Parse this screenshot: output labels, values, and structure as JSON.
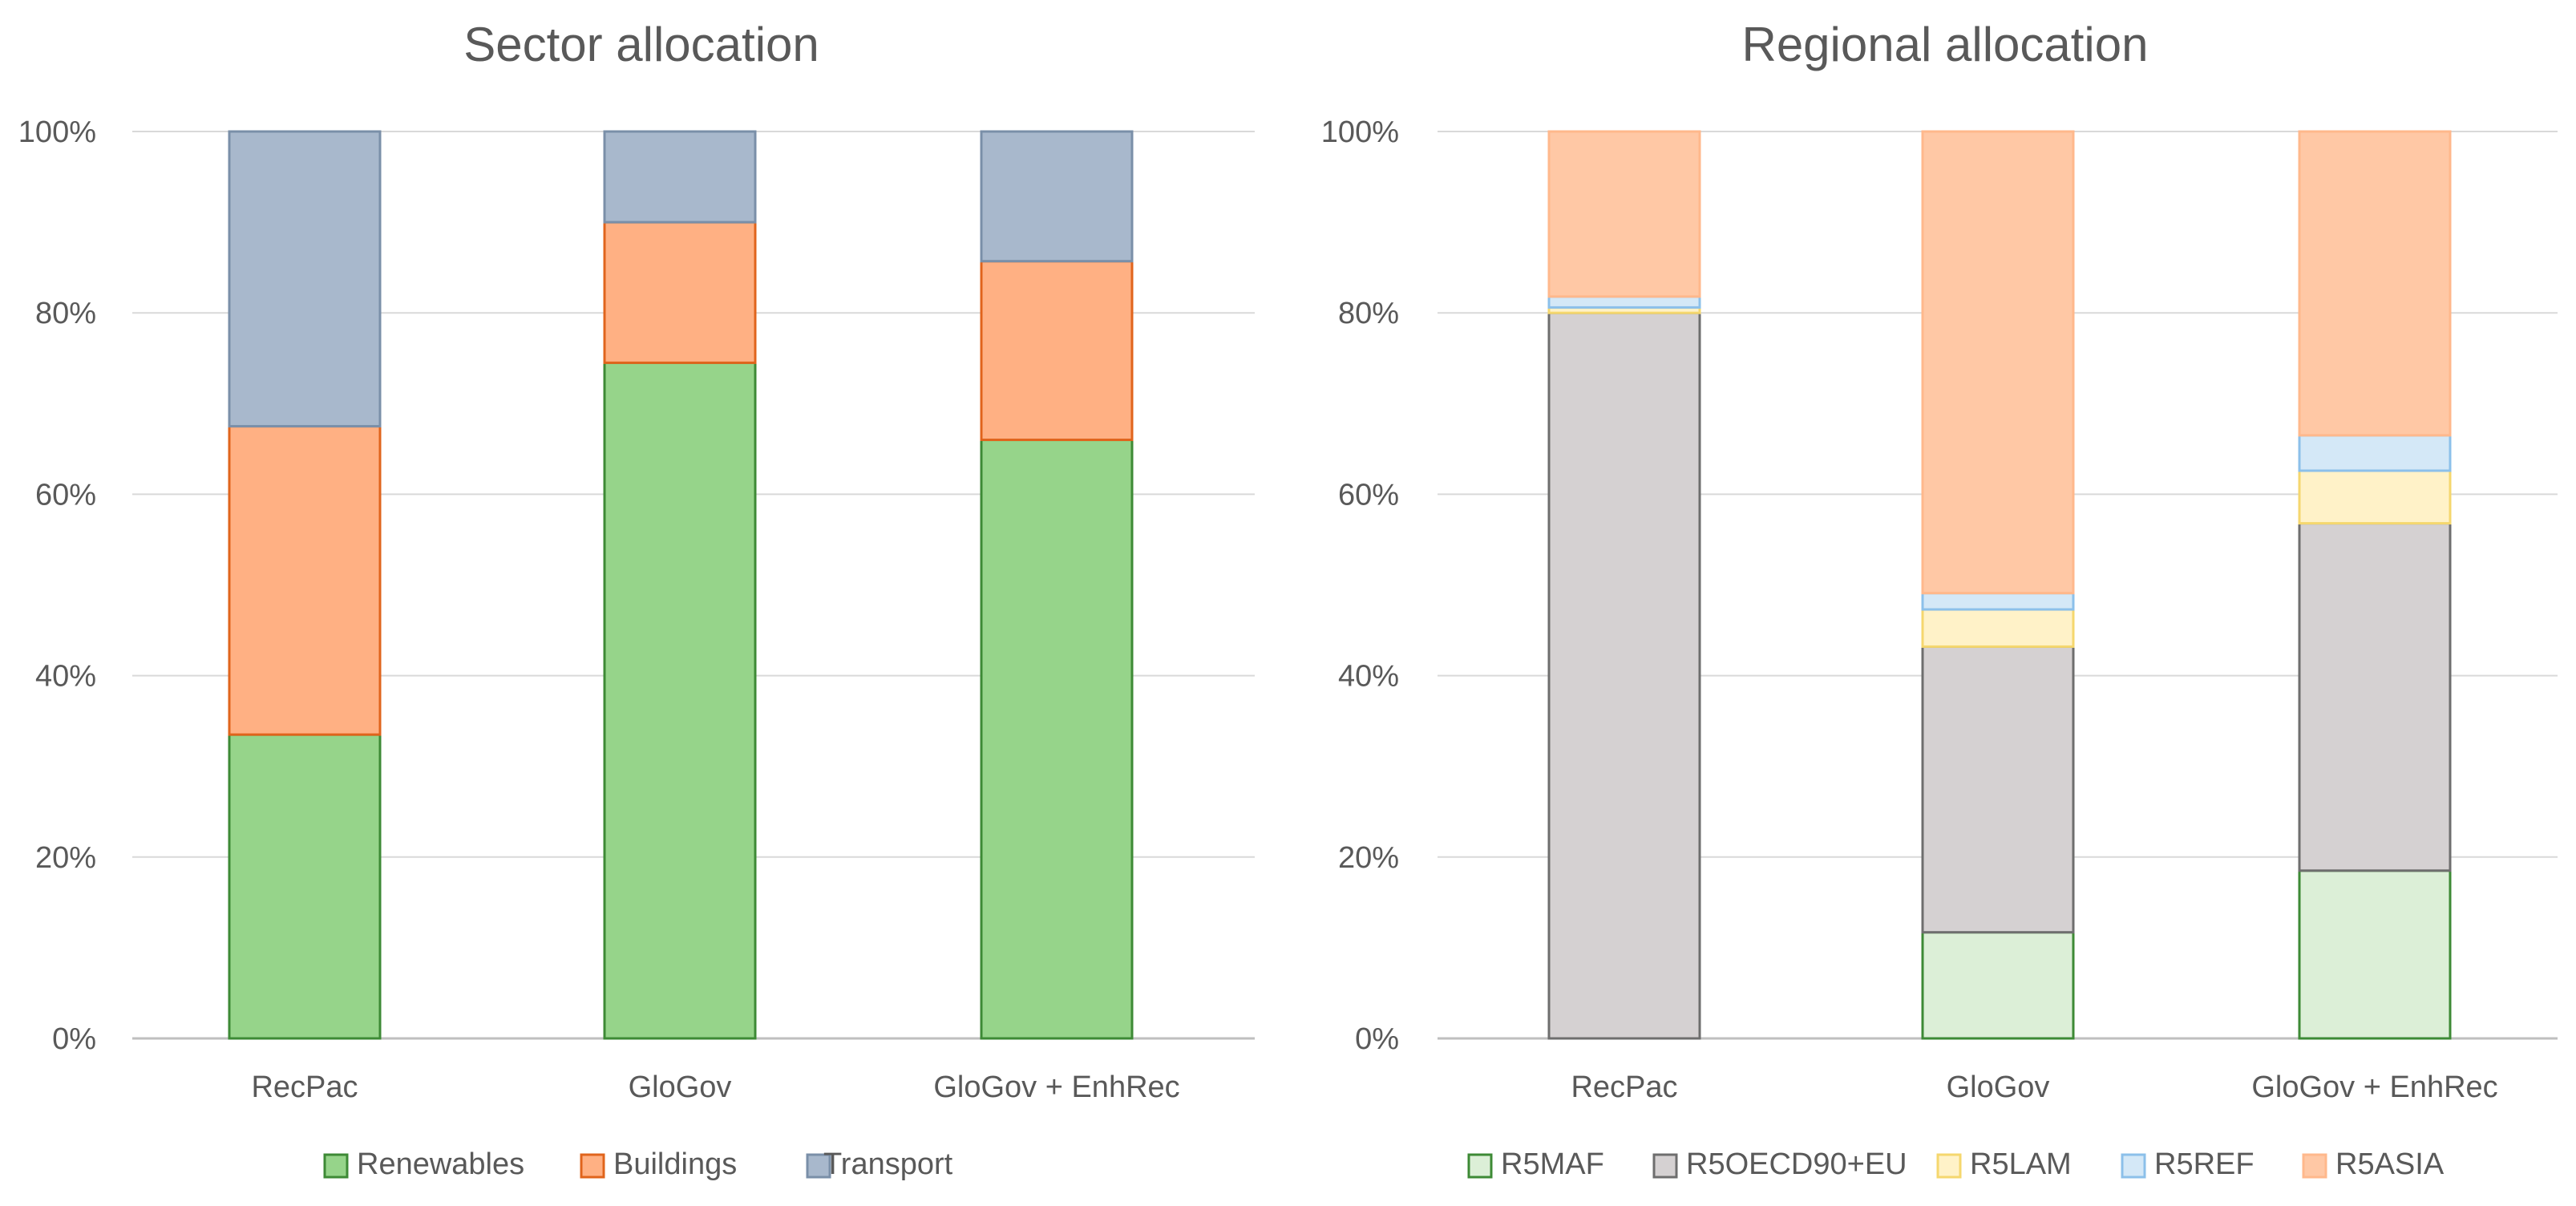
{
  "chart_data": [
    {
      "type": "bar",
      "stacked": true,
      "percent_stacked": true,
      "title": "Sector allocation",
      "categories": [
        "RecPac",
        "GloGov",
        "GloGov + EnhRec"
      ],
      "yticks": [
        "0%",
        "20%",
        "40%",
        "60%",
        "80%",
        "100%"
      ],
      "ylim": [
        0,
        100
      ],
      "grid": true,
      "legend_position": "bottom",
      "series": [
        {
          "name": "Renewables",
          "values": [
            33.5,
            74.5,
            66
          ],
          "fill": "#96d48a",
          "stroke": "#3d8a35"
        },
        {
          "name": "Buildings",
          "values": [
            34,
            15.5,
            19.7
          ],
          "fill": "#ffb083",
          "stroke": "#e0641c"
        },
        {
          "name": "Transport",
          "values": [
            32.5,
            10,
            14.3
          ],
          "fill": "#a8b8cc",
          "stroke": "#7a8fa8"
        }
      ]
    },
    {
      "type": "bar",
      "stacked": true,
      "percent_stacked": true,
      "title": "Regional allocation",
      "categories": [
        "RecPac",
        "GloGov",
        "GloGov + EnhRec"
      ],
      "yticks": [
        "0%",
        "20%",
        "40%",
        "60%",
        "80%",
        "100%"
      ],
      "ylim": [
        0,
        100
      ],
      "grid": true,
      "legend_position": "bottom",
      "series": [
        {
          "name": "R5MAF",
          "values": [
            0,
            11.7,
            18.5
          ],
          "fill": "#dcefd7",
          "stroke": "#3d8a35"
        },
        {
          "name": "R5OECD90+EU",
          "values": [
            80,
            31.5,
            38.3
          ],
          "fill": "#d5d1d2",
          "stroke": "#6e6e6e"
        },
        {
          "name": "R5LAM",
          "values": [
            0.6,
            4.1,
            5.8
          ],
          "fill": "#fff2c8",
          "stroke": "#f5d76e"
        },
        {
          "name": "R5REF",
          "values": [
            1.2,
            1.8,
            3.9
          ],
          "fill": "#d4e8f7",
          "stroke": "#8cc0ea"
        },
        {
          "name": "R5ASIA",
          "values": [
            18.2,
            50.9,
            33.5
          ],
          "fill": "#ffc8a5",
          "stroke": "#ffb88c"
        }
      ]
    }
  ]
}
